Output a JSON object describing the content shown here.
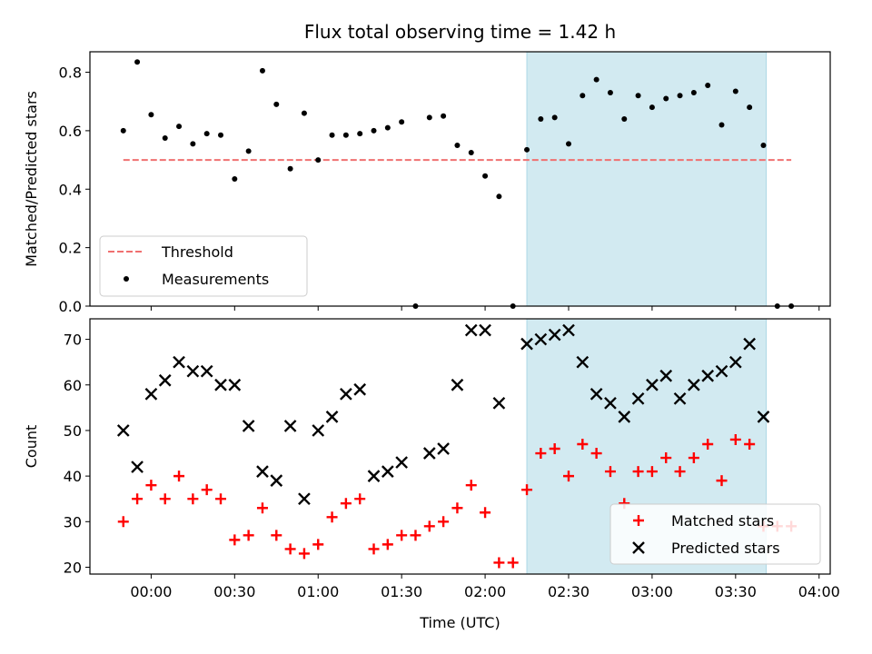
{
  "chart_data": {
    "title": "Flux total observing time = 1.42 h",
    "xlabel": "Time (UTC)",
    "x_ticks": [
      "00:00",
      "00:30",
      "01:00",
      "01:30",
      "02:00",
      "02:30",
      "03:00",
      "03:30",
      "04:00"
    ],
    "xlim": [
      "-0:22",
      "04:04"
    ],
    "shaded_region": {
      "start": "02:15",
      "end": "03:41",
      "color": "#add8e6"
    },
    "panels": [
      {
        "type": "scatter",
        "ylabel": "Matched/Predicted stars",
        "ylim": [
          0,
          0.87
        ],
        "y_ticks": [
          "0.0",
          "0.2",
          "0.4",
          "0.6",
          "0.8"
        ],
        "legend_position": "lower-left",
        "threshold": {
          "name": "Threshold",
          "value": 0.5,
          "color": "#f07070",
          "x_start": "-0:10",
          "x_end": "03:50"
        },
        "series": [
          {
            "name": "Measurements",
            "color": "#000000",
            "points": [
              [
                "-0:10",
                0.6
              ],
              [
                "-0:05",
                0.835
              ],
              [
                "00:00",
                0.655
              ],
              [
                "00:05",
                0.575
              ],
              [
                "00:10",
                0.615
              ],
              [
                "00:15",
                0.555
              ],
              [
                "00:20",
                0.59
              ],
              [
                "00:25",
                0.585
              ],
              [
                "00:30",
                0.435
              ],
              [
                "00:35",
                0.53
              ],
              [
                "00:40",
                0.805
              ],
              [
                "00:45",
                0.69
              ],
              [
                "00:50",
                0.47
              ],
              [
                "00:55",
                0.66
              ],
              [
                "01:00",
                0.5
              ],
              [
                "01:05",
                0.585
              ],
              [
                "01:10",
                0.585
              ],
              [
                "01:15",
                0.59
              ],
              [
                "01:20",
                0.6
              ],
              [
                "01:25",
                0.61
              ],
              [
                "01:30",
                0.63
              ],
              [
                "01:35",
                0.0
              ],
              [
                "01:40",
                0.645
              ],
              [
                "01:45",
                0.65
              ],
              [
                "01:50",
                0.55
              ],
              [
                "01:55",
                0.525
              ],
              [
                "02:00",
                0.445
              ],
              [
                "02:05",
                0.375
              ],
              [
                "02:10",
                0.0
              ],
              [
                "02:15",
                0.535
              ],
              [
                "02:20",
                0.64
              ],
              [
                "02:25",
                0.645
              ],
              [
                "02:30",
                0.555
              ],
              [
                "02:35",
                0.72
              ],
              [
                "02:40",
                0.775
              ],
              [
                "02:45",
                0.73
              ],
              [
                "02:50",
                0.64
              ],
              [
                "02:55",
                0.72
              ],
              [
                "03:00",
                0.68
              ],
              [
                "03:05",
                0.71
              ],
              [
                "03:10",
                0.72
              ],
              [
                "03:15",
                0.73
              ],
              [
                "03:20",
                0.755
              ],
              [
                "03:25",
                0.62
              ],
              [
                "03:30",
                0.735
              ],
              [
                "03:35",
                0.68
              ],
              [
                "03:40",
                0.55
              ],
              [
                "03:45",
                0.0
              ],
              [
                "03:50",
                0.0
              ]
            ]
          }
        ]
      },
      {
        "type": "scatter",
        "ylabel": "Count",
        "ylim": [
          18.5,
          74.5
        ],
        "y_ticks": [
          "20",
          "30",
          "40",
          "50",
          "60",
          "70"
        ],
        "legend_position": "lower-right",
        "series": [
          {
            "name": "Matched stars",
            "color": "#ff0000",
            "marker": "plus",
            "points": [
              [
                "-0:10",
                30
              ],
              [
                "-0:05",
                35
              ],
              [
                "00:00",
                38
              ],
              [
                "00:05",
                35
              ],
              [
                "00:10",
                40
              ],
              [
                "00:15",
                35
              ],
              [
                "00:20",
                37
              ],
              [
                "00:25",
                35
              ],
              [
                "00:30",
                26
              ],
              [
                "00:35",
                27
              ],
              [
                "00:40",
                33
              ],
              [
                "00:45",
                27
              ],
              [
                "00:50",
                24
              ],
              [
                "00:55",
                23
              ],
              [
                "01:00",
                25
              ],
              [
                "01:05",
                31
              ],
              [
                "01:10",
                34
              ],
              [
                "01:15",
                35
              ],
              [
                "01:20",
                24
              ],
              [
                "01:25",
                25
              ],
              [
                "01:30",
                27
              ],
              [
                "01:35",
                27
              ],
              [
                "01:40",
                29
              ],
              [
                "01:45",
                30
              ],
              [
                "01:50",
                33
              ],
              [
                "01:55",
                38
              ],
              [
                "02:00",
                32
              ],
              [
                "02:05",
                21
              ],
              [
                "02:10",
                21
              ],
              [
                "02:15",
                37
              ],
              [
                "02:20",
                45
              ],
              [
                "02:25",
                46
              ],
              [
                "02:30",
                40
              ],
              [
                "02:35",
                47
              ],
              [
                "02:40",
                45
              ],
              [
                "02:45",
                41
              ],
              [
                "02:50",
                34
              ],
              [
                "02:55",
                41
              ],
              [
                "03:00",
                41
              ],
              [
                "03:05",
                44
              ],
              [
                "03:10",
                41
              ],
              [
                "03:15",
                44
              ],
              [
                "03:20",
                47
              ],
              [
                "03:25",
                39
              ],
              [
                "03:30",
                48
              ],
              [
                "03:35",
                47
              ],
              [
                "03:40",
                29
              ],
              [
                "03:45",
                29
              ],
              [
                "03:50",
                29
              ]
            ]
          },
          {
            "name": "Predicted stars",
            "color": "#000000",
            "marker": "x",
            "points": [
              [
                "-0:10",
                50
              ],
              [
                "-0:05",
                42
              ],
              [
                "00:00",
                58
              ],
              [
                "00:05",
                61
              ],
              [
                "00:10",
                65
              ],
              [
                "00:15",
                63
              ],
              [
                "00:20",
                63
              ],
              [
                "00:25",
                60
              ],
              [
                "00:30",
                60
              ],
              [
                "00:35",
                51
              ],
              [
                "00:40",
                41
              ],
              [
                "00:45",
                39
              ],
              [
                "00:50",
                51
              ],
              [
                "00:55",
                35
              ],
              [
                "01:00",
                50
              ],
              [
                "01:05",
                53
              ],
              [
                "01:10",
                58
              ],
              [
                "01:15",
                59
              ],
              [
                "01:20",
                40
              ],
              [
                "01:25",
                41
              ],
              [
                "01:30",
                43
              ],
              [
                "01:40",
                45
              ],
              [
                "01:45",
                46
              ],
              [
                "01:50",
                60
              ],
              [
                "01:55",
                72
              ],
              [
                "02:00",
                72
              ],
              [
                "02:05",
                56
              ],
              [
                "02:15",
                69
              ],
              [
                "02:20",
                70
              ],
              [
                "02:25",
                71
              ],
              [
                "02:30",
                72
              ],
              [
                "02:35",
                65
              ],
              [
                "02:40",
                58
              ],
              [
                "02:45",
                56
              ],
              [
                "02:50",
                53
              ],
              [
                "02:55",
                57
              ],
              [
                "03:00",
                60
              ],
              [
                "03:05",
                62
              ],
              [
                "03:10",
                57
              ],
              [
                "03:15",
                60
              ],
              [
                "03:20",
                62
              ],
              [
                "03:25",
                63
              ],
              [
                "03:30",
                65
              ],
              [
                "03:35",
                69
              ],
              [
                "03:40",
                53
              ]
            ]
          }
        ]
      }
    ]
  }
}
